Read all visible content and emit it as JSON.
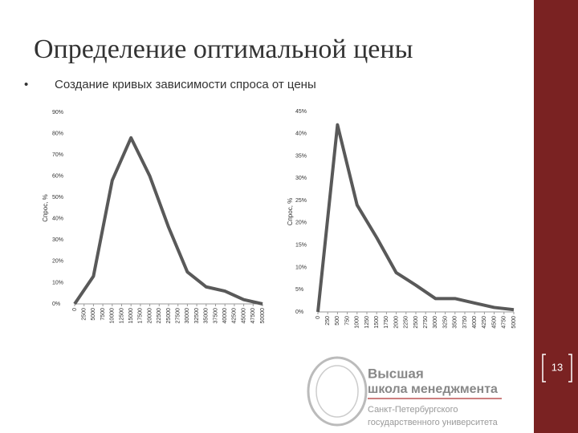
{
  "title": "Определение оптимальной цены",
  "bullet": "Создание кривых зависимости спроса от цены",
  "page_number": "13",
  "logo": {
    "line1": "Высшая",
    "line2": "школа менеджмента",
    "line3": "Санкт-Петербургского",
    "line4": "государственного университета"
  },
  "chart_data": [
    {
      "type": "line",
      "y_label": "Спрос, %",
      "color": "#595959",
      "x": [
        0,
        5000,
        10000,
        15000,
        20000,
        25000,
        30000,
        35000,
        40000,
        45000,
        50000
      ],
      "values": [
        0,
        13,
        58,
        78,
        60,
        36,
        15,
        8,
        6,
        2,
        0
      ],
      "xlim": [
        0,
        50000
      ],
      "xticks": [
        0,
        2500,
        5000,
        7500,
        10000,
        12500,
        15000,
        17500,
        20000,
        22500,
        25000,
        27500,
        30000,
        32500,
        35000,
        37500,
        40000,
        42500,
        45000,
        47500,
        50000
      ],
      "ylim": [
        0,
        90
      ],
      "yticks": [
        {
          "value": 0,
          "label": "0%"
        },
        {
          "value": 10,
          "label": "10%"
        },
        {
          "value": 20,
          "label": "20%"
        },
        {
          "value": 30,
          "label": "30%"
        },
        {
          "value": 40,
          "label": "40%"
        },
        {
          "value": 50,
          "label": "50%"
        },
        {
          "value": 60,
          "label": "60%"
        },
        {
          "value": 70,
          "label": "70%"
        },
        {
          "value": 80,
          "label": "80%"
        },
        {
          "value": 90,
          "label": "90%"
        }
      ],
      "grid": false
    },
    {
      "type": "line",
      "y_label": "Спрос, %",
      "color": "#595959",
      "x": [
        0,
        500,
        1000,
        1500,
        2000,
        2500,
        3000,
        3500,
        4000,
        4500,
        5000
      ],
      "values": [
        0,
        42,
        24,
        16.7,
        8.8,
        6,
        3,
        3,
        2,
        1,
        0.5
      ],
      "xlim": [
        0,
        5000
      ],
      "xticks": [
        0,
        250,
        500,
        750,
        1000,
        1250,
        1500,
        1750,
        2000,
        2250,
        2500,
        2750,
        3000,
        3250,
        3500,
        3750,
        4000,
        4250,
        4500,
        4750,
        5000
      ],
      "ylim": [
        0,
        45
      ],
      "yticks": [
        {
          "value": 0,
          "label": "0%"
        },
        {
          "value": 5,
          "label": "5%"
        },
        {
          "value": 10,
          "label": "10%"
        },
        {
          "value": 15,
          "label": "15%"
        },
        {
          "value": 20,
          "label": "20%"
        },
        {
          "value": 25,
          "label": "25%"
        },
        {
          "value": 30,
          "label": "30%"
        },
        {
          "value": 35,
          "label": "35%"
        },
        {
          "value": 40,
          "label": "40%"
        },
        {
          "value": 45,
          "label": "45%"
        }
      ],
      "grid": false
    }
  ]
}
